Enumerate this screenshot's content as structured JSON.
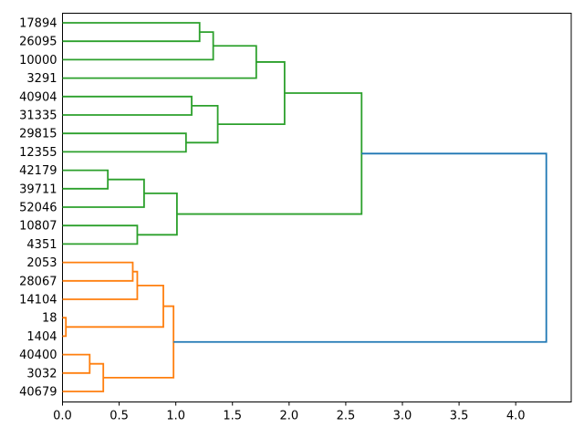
{
  "chart_data": {
    "type": "dendrogram",
    "title": "",
    "xlabel": "",
    "ylabel": "",
    "orientation": "leaves-left-root-right",
    "grid": false,
    "legend": null,
    "leaves": [
      "17894",
      "26095",
      "10000",
      "3291",
      "40904",
      "31335",
      "29815",
      "12355",
      "42179",
      "39711",
      "52046",
      "10807",
      "4351",
      "2053",
      "28067",
      "14104",
      "18",
      "1404",
      "40400",
      "3032",
      "40679"
    ],
    "links": [
      {
        "id": "A",
        "children": [
          "17894",
          "26095"
        ],
        "distance": 1.21,
        "color_key": "green"
      },
      {
        "id": "B",
        "children": [
          "A",
          "10000"
        ],
        "distance": 1.33,
        "color_key": "green"
      },
      {
        "id": "C",
        "children": [
          "B",
          "3291"
        ],
        "distance": 1.71,
        "color_key": "green"
      },
      {
        "id": "D",
        "children": [
          "40904",
          "31335"
        ],
        "distance": 1.14,
        "color_key": "green"
      },
      {
        "id": "E",
        "children": [
          "29815",
          "12355"
        ],
        "distance": 1.09,
        "color_key": "green"
      },
      {
        "id": "F",
        "children": [
          "D",
          "E"
        ],
        "distance": 1.37,
        "color_key": "green"
      },
      {
        "id": "G",
        "children": [
          "C",
          "F"
        ],
        "distance": 1.96,
        "color_key": "green"
      },
      {
        "id": "H",
        "children": [
          "42179",
          "39711"
        ],
        "distance": 0.4,
        "color_key": "green"
      },
      {
        "id": "I",
        "children": [
          "H",
          "52046"
        ],
        "distance": 0.72,
        "color_key": "green"
      },
      {
        "id": "J",
        "children": [
          "10807",
          "4351"
        ],
        "distance": 0.66,
        "color_key": "green"
      },
      {
        "id": "K",
        "children": [
          "I",
          "J"
        ],
        "distance": 1.01,
        "color_key": "green"
      },
      {
        "id": "L",
        "children": [
          "G",
          "K"
        ],
        "distance": 2.64,
        "color_key": "green"
      },
      {
        "id": "M",
        "children": [
          "2053",
          "28067"
        ],
        "distance": 0.62,
        "color_key": "orange"
      },
      {
        "id": "N",
        "children": [
          "M",
          "14104"
        ],
        "distance": 0.66,
        "color_key": "orange"
      },
      {
        "id": "O",
        "children": [
          "18",
          "1404"
        ],
        "distance": 0.03,
        "color_key": "orange"
      },
      {
        "id": "P",
        "children": [
          "N",
          "O"
        ],
        "distance": 0.89,
        "color_key": "orange"
      },
      {
        "id": "Q",
        "children": [
          "40400",
          "3032"
        ],
        "distance": 0.24,
        "color_key": "orange"
      },
      {
        "id": "R",
        "children": [
          "Q",
          "40679"
        ],
        "distance": 0.36,
        "color_key": "orange"
      },
      {
        "id": "S",
        "children": [
          "P",
          "R"
        ],
        "distance": 0.98,
        "color_key": "orange"
      },
      {
        "id": "ROOT",
        "children": [
          "L",
          "S"
        ],
        "distance": 4.27,
        "color_key": "blue"
      }
    ],
    "colors": {
      "green": "#2ca02c",
      "orange": "#ff7f0e",
      "blue": "#1f77b4",
      "axis": "#000000"
    },
    "x_axis": {
      "range": [
        0,
        4.49
      ],
      "tick_values": [
        0,
        0.5,
        1,
        1.5,
        2,
        2.5,
        3,
        3.5,
        4
      ],
      "tick_labels": [
        "0.0",
        "0.5",
        "1.0",
        "1.5",
        "2.0",
        "2.5",
        "3.0",
        "3.5",
        "4.0"
      ]
    }
  }
}
